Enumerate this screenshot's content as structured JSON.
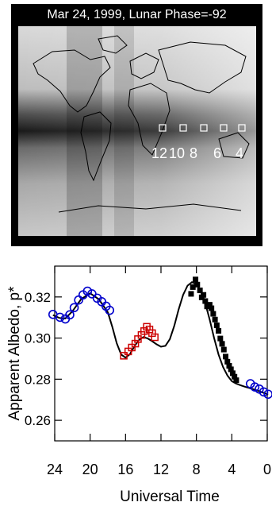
{
  "map": {
    "title": "Mar 24, 1999, Lunar Phase=-92",
    "station_labels": [
      "12",
      "10",
      "8",
      "6",
      "4"
    ]
  },
  "chart_data": {
    "type": "scatter",
    "xlabel": "Universal Time",
    "ylabel": "Apparent Albedo, p*",
    "xlim": [
      24,
      0
    ],
    "ylim": [
      0.25,
      0.335
    ],
    "xticks": [
      24,
      20,
      16,
      12,
      8,
      4,
      0
    ],
    "yticks": [
      0.26,
      0.28,
      0.3,
      0.32
    ],
    "ytick_labels": [
      "0.26",
      "0.28",
      "0.30",
      "0.32"
    ],
    "legend": "none",
    "grid": false,
    "series": [
      {
        "marker": "circle-open",
        "color": "#0000cc",
        "points": [
          [
            24.2,
            0.3115
          ],
          [
            23.4,
            0.3101
          ],
          [
            22.8,
            0.3093
          ],
          [
            22.3,
            0.3113
          ],
          [
            21.8,
            0.3148
          ],
          [
            21.3,
            0.3185
          ],
          [
            20.8,
            0.321
          ],
          [
            20.3,
            0.3228
          ],
          [
            19.8,
            0.3215
          ],
          [
            19.2,
            0.3194
          ],
          [
            18.7,
            0.3177
          ],
          [
            18.2,
            0.3155
          ],
          [
            17.8,
            0.3135
          ],
          [
            1.9,
            0.2778
          ],
          [
            1.4,
            0.2762
          ],
          [
            0.9,
            0.2752
          ],
          [
            0.4,
            0.2738
          ],
          [
            -0.1,
            0.2727
          ]
        ]
      },
      {
        "marker": "square-open",
        "color": "#cc0000",
        "points": [
          [
            16.2,
            0.2914
          ],
          [
            15.7,
            0.2935
          ],
          [
            15.3,
            0.2954
          ],
          [
            14.9,
            0.2973
          ],
          [
            14.6,
            0.2995
          ],
          [
            14.2,
            0.3015
          ],
          [
            13.9,
            0.3034
          ],
          [
            13.6,
            0.3055
          ],
          [
            13.3,
            0.3042
          ],
          [
            13.0,
            0.3024
          ],
          [
            12.7,
            0.3004
          ]
        ]
      },
      {
        "marker": "square-filled",
        "color": "#000000",
        "points": [
          [
            8.6,
            0.3215
          ],
          [
            8.4,
            0.3248
          ],
          [
            8.1,
            0.3285
          ],
          [
            7.9,
            0.326
          ],
          [
            7.6,
            0.3232
          ],
          [
            7.4,
            0.3198
          ],
          [
            7.2,
            0.321
          ],
          [
            7.0,
            0.318
          ],
          [
            6.8,
            0.3154
          ],
          [
            6.5,
            0.3162
          ],
          [
            6.3,
            0.3145
          ],
          [
            6.1,
            0.3118
          ],
          [
            5.9,
            0.309
          ],
          [
            5.7,
            0.3062
          ],
          [
            5.5,
            0.3035
          ],
          [
            5.3,
            0.2998
          ],
          [
            5.1,
            0.2972
          ],
          [
            4.9,
            0.2944
          ],
          [
            4.7,
            0.291
          ],
          [
            4.5,
            0.2885
          ],
          [
            4.3,
            0.2865
          ],
          [
            4.1,
            0.2848
          ],
          [
            3.9,
            0.2829
          ],
          [
            3.7,
            0.2812
          ],
          [
            3.5,
            0.2795
          ]
        ]
      }
    ],
    "curve": [
      [
        24.2,
        0.3112
      ],
      [
        23.5,
        0.3098
      ],
      [
        22.8,
        0.3095
      ],
      [
        22.0,
        0.313
      ],
      [
        21.0,
        0.319
      ],
      [
        20.0,
        0.3218
      ],
      [
        19.0,
        0.3188
      ],
      [
        18.0,
        0.3125
      ],
      [
        17.5,
        0.3055
      ],
      [
        17.0,
        0.2975
      ],
      [
        16.5,
        0.292
      ],
      [
        16.0,
        0.2905
      ],
      [
        15.5,
        0.2922
      ],
      [
        15.0,
        0.296
      ],
      [
        14.5,
        0.299
      ],
      [
        14.0,
        0.3005
      ],
      [
        13.5,
        0.2998
      ],
      [
        13.0,
        0.2985
      ],
      [
        12.5,
        0.297
      ],
      [
        12.0,
        0.2958
      ],
      [
        11.5,
        0.2962
      ],
      [
        11.0,
        0.2995
      ],
      [
        10.5,
        0.306
      ],
      [
        10.0,
        0.314
      ],
      [
        9.5,
        0.321
      ],
      [
        9.0,
        0.3255
      ],
      [
        8.5,
        0.3272
      ],
      [
        8.0,
        0.3262
      ],
      [
        7.5,
        0.323
      ],
      [
        7.0,
        0.317
      ],
      [
        6.5,
        0.309
      ],
      [
        6.0,
        0.3
      ],
      [
        5.5,
        0.292
      ],
      [
        5.0,
        0.286
      ],
      [
        4.5,
        0.2818
      ],
      [
        4.0,
        0.279
      ],
      [
        3.5,
        0.2778
      ],
      [
        3.0,
        0.277
      ],
      [
        2.5,
        0.2763
      ],
      [
        2.0,
        0.2757
      ],
      [
        1.5,
        0.275
      ],
      [
        1.0,
        0.2743
      ],
      [
        0.5,
        0.2735
      ],
      [
        0.0,
        0.2727
      ],
      [
        -0.1,
        0.2725
      ]
    ]
  }
}
